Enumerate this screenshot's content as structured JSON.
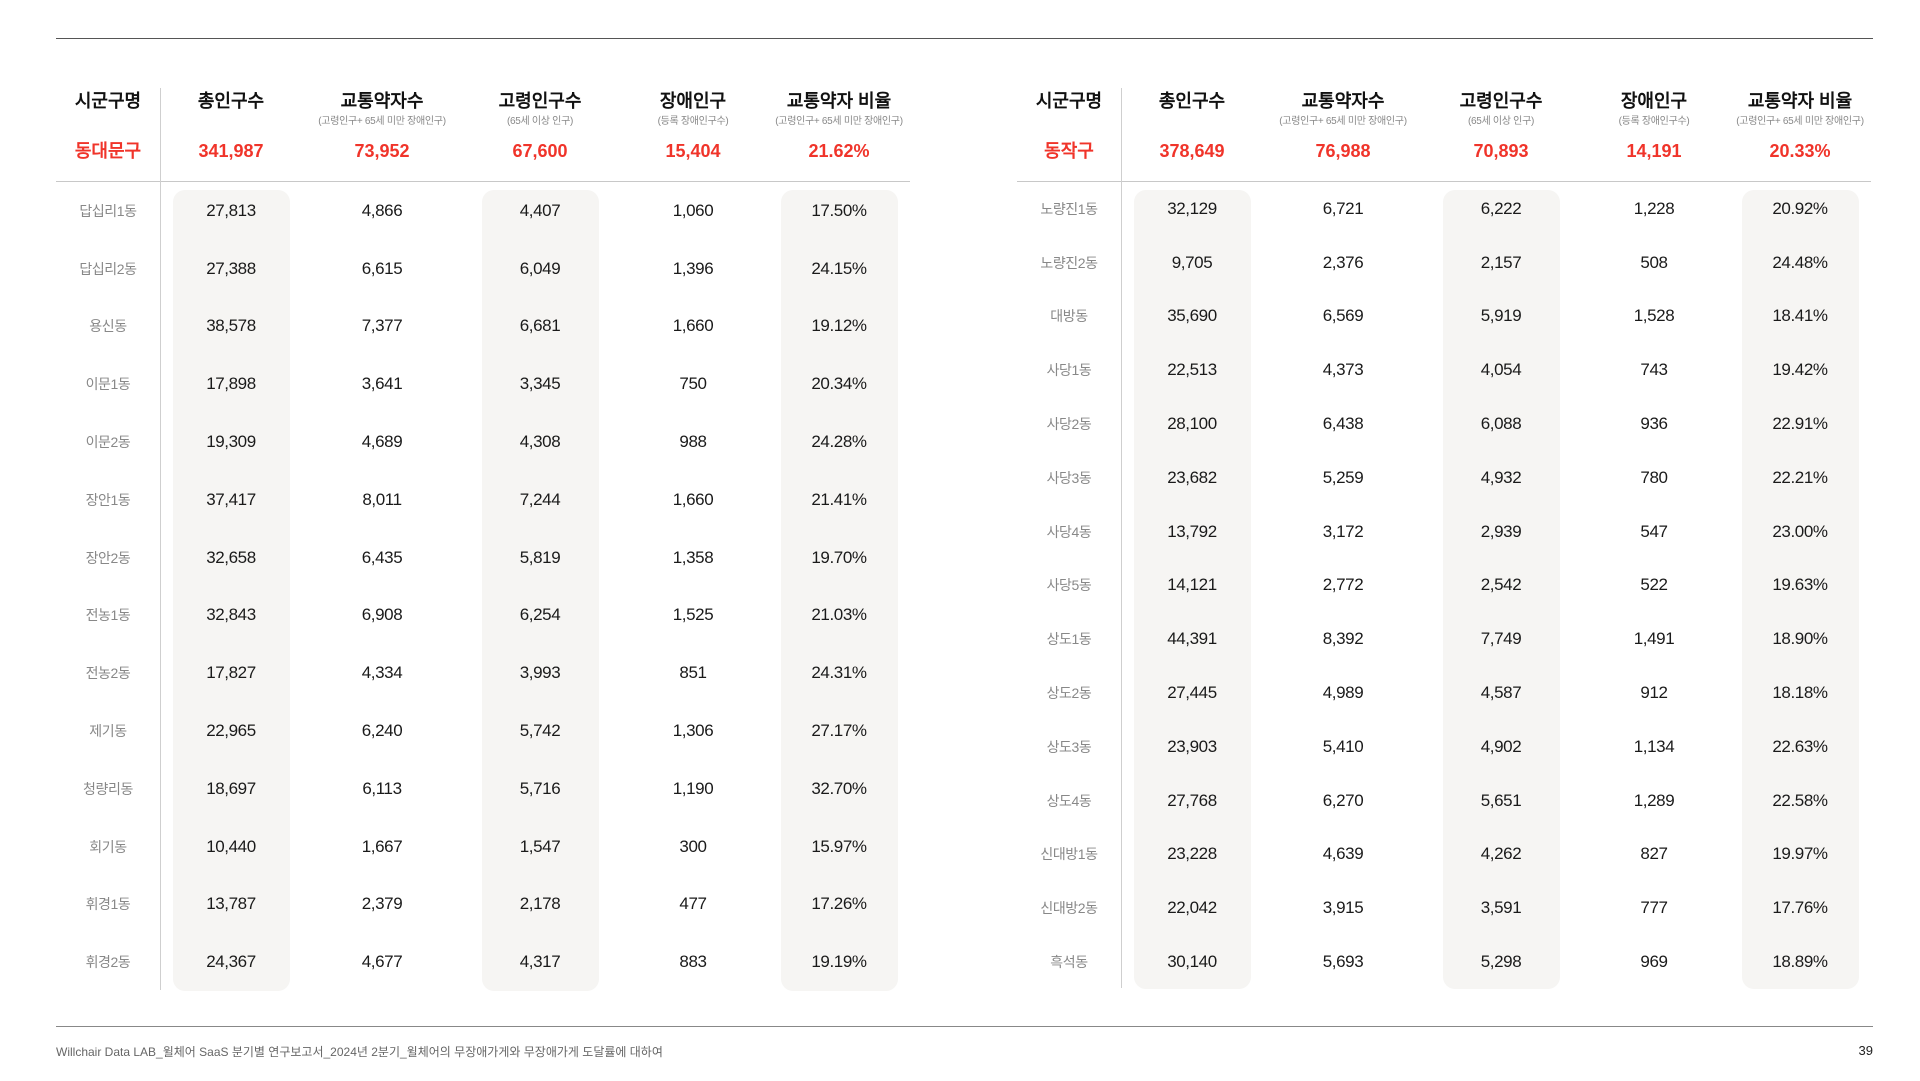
{
  "columns": [
    {
      "title": "시군구명",
      "sub": ""
    },
    {
      "title": "총인구수",
      "sub": ""
    },
    {
      "title": "교통약자수",
      "sub": "(고령인구+ 65세 미만 장애인구)"
    },
    {
      "title": "고령인구수",
      "sub": "(65세 이상 인구)"
    },
    {
      "title": "장애인구",
      "sub": "(등록 장애인구수)"
    },
    {
      "title": "교통약자 비율",
      "sub": "(고령인구+ 65세 미만 장애인구)"
    }
  ],
  "accent_color": "#f0342a",
  "tables": [
    {
      "district": [
        "동대문구",
        "341,987",
        "73,952",
        "67,600",
        "15,404",
        "21.62%"
      ],
      "rows": [
        [
          "답십리1동",
          "27,813",
          "4,866",
          "4,407",
          "1,060",
          "17.50%"
        ],
        [
          "답십리2동",
          "27,388",
          "6,615",
          "6,049",
          "1,396",
          "24.15%"
        ],
        [
          "용신동",
          "38,578",
          "7,377",
          "6,681",
          "1,660",
          "19.12%"
        ],
        [
          "이문1동",
          "17,898",
          "3,641",
          "3,345",
          "750",
          "20.34%"
        ],
        [
          "이문2동",
          "19,309",
          "4,689",
          "4,308",
          "988",
          "24.28%"
        ],
        [
          "장안1동",
          "37,417",
          "8,011",
          "7,244",
          "1,660",
          "21.41%"
        ],
        [
          "장안2동",
          "32,658",
          "6,435",
          "5,819",
          "1,358",
          "19.70%"
        ],
        [
          "전농1동",
          "32,843",
          "6,908",
          "6,254",
          "1,525",
          "21.03%"
        ],
        [
          "전농2동",
          "17,827",
          "4,334",
          "3,993",
          "851",
          "24.31%"
        ],
        [
          "제기동",
          "22,965",
          "6,240",
          "5,742",
          "1,306",
          "27.17%"
        ],
        [
          "청량리동",
          "18,697",
          "6,113",
          "5,716",
          "1,190",
          "32.70%"
        ],
        [
          "회기동",
          "10,440",
          "1,667",
          "1,547",
          "300",
          "15.97%"
        ],
        [
          "휘경1동",
          "13,787",
          "2,379",
          "2,178",
          "477",
          "17.26%"
        ],
        [
          "휘경2동",
          "24,367",
          "4,677",
          "4,317",
          "883",
          "19.19%"
        ]
      ]
    },
    {
      "district": [
        "동작구",
        "378,649",
        "76,988",
        "70,893",
        "14,191",
        "20.33%"
      ],
      "rows": [
        [
          "노량진1동",
          "32,129",
          "6,721",
          "6,222",
          "1,228",
          "20.92%"
        ],
        [
          "노량진2동",
          "9,705",
          "2,376",
          "2,157",
          "508",
          "24.48%"
        ],
        [
          "대방동",
          "35,690",
          "6,569",
          "5,919",
          "1,528",
          "18.41%"
        ],
        [
          "사당1동",
          "22,513",
          "4,373",
          "4,054",
          "743",
          "19.42%"
        ],
        [
          "사당2동",
          "28,100",
          "6,438",
          "6,088",
          "936",
          "22.91%"
        ],
        [
          "사당3동",
          "23,682",
          "5,259",
          "4,932",
          "780",
          "22.21%"
        ],
        [
          "사당4동",
          "13,792",
          "3,172",
          "2,939",
          "547",
          "23.00%"
        ],
        [
          "사당5동",
          "14,121",
          "2,772",
          "2,542",
          "522",
          "19.63%"
        ],
        [
          "상도1동",
          "44,391",
          "8,392",
          "7,749",
          "1,491",
          "18.90%"
        ],
        [
          "상도2동",
          "27,445",
          "4,989",
          "4,587",
          "912",
          "18.18%"
        ],
        [
          "상도3동",
          "23,903",
          "5,410",
          "4,902",
          "1,134",
          "22.63%"
        ],
        [
          "상도4동",
          "27,768",
          "6,270",
          "5,651",
          "1,289",
          "22.58%"
        ],
        [
          "신대방1동",
          "23,228",
          "4,639",
          "4,262",
          "827",
          "19.97%"
        ],
        [
          "신대방2동",
          "22,042",
          "3,915",
          "3,591",
          "777",
          "17.76%"
        ],
        [
          "흑석동",
          "30,140",
          "5,693",
          "5,298",
          "969",
          "18.89%"
        ]
      ]
    }
  ],
  "footer": {
    "text": "Willchair Data LAB_윌체어 SaaS 분기별 연구보고서_2024년 2분기_윌체어의 무장애가게와 무장애가게 도달률에 대하여",
    "page": "39"
  }
}
